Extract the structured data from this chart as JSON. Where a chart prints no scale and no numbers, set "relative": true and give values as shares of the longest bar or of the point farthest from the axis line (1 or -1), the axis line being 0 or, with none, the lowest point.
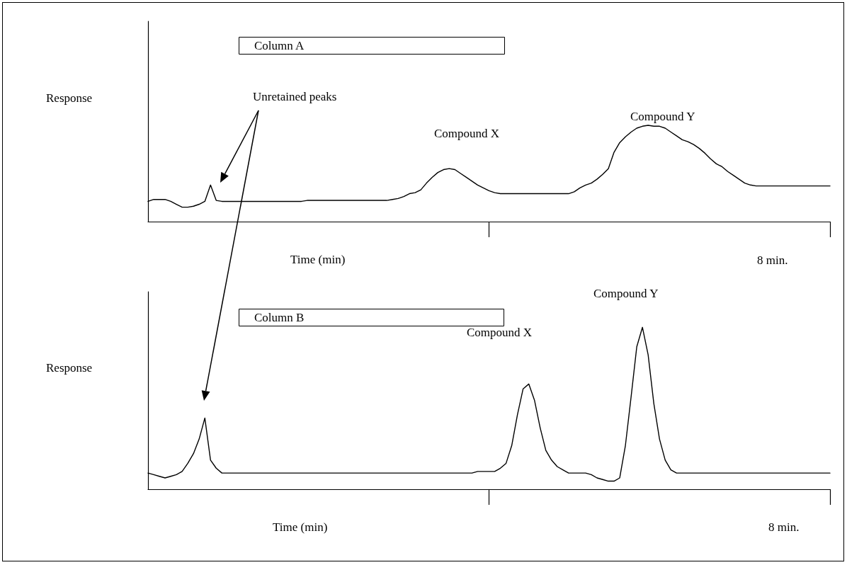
{
  "chart_data": [
    {
      "type": "line",
      "title": "Column A",
      "xlabel": "Time (min)",
      "ylabel": "Response",
      "relative": true,
      "marker": "none",
      "line_style": "solid",
      "color": "#000000",
      "annotations": [
        "Unretained peaks",
        "Compound X",
        "Compound Y",
        "8 min."
      ],
      "categories": [
        null,
        null,
        null,
        null,
        null,
        null,
        null,
        null,
        null,
        null,
        null,
        null,
        null,
        null,
        null,
        null,
        null,
        null,
        null,
        null,
        null,
        null,
        null,
        null,
        null,
        null,
        null,
        null,
        null,
        null,
        null,
        null,
        null,
        null,
        null,
        null,
        null,
        null,
        null,
        null,
        null,
        null,
        null,
        null,
        null,
        null,
        null,
        null,
        null,
        null,
        null,
        null,
        null,
        null,
        null,
        null,
        null,
        null,
        null,
        null,
        null,
        null,
        null,
        null,
        null,
        null,
        null,
        null,
        null,
        null,
        null,
        null,
        null,
        null,
        null,
        null,
        null,
        null,
        null,
        null,
        null,
        null,
        null,
        null,
        null,
        null,
        null,
        null,
        null,
        null,
        null,
        null,
        null,
        null,
        null,
        null,
        null,
        null,
        null,
        null,
        null,
        null,
        null,
        null,
        null,
        null,
        null,
        null,
        null,
        null,
        null,
        null,
        null,
        null,
        null,
        null,
        null,
        null,
        null,
        null,
        null
      ],
      "values": [
        0.21,
        0.23,
        0.23,
        0.23,
        0.21,
        0.18,
        0.15,
        0.15,
        0.16,
        0.18,
        0.21,
        0.38,
        0.22,
        0.21,
        0.21,
        0.21,
        0.21,
        0.21,
        0.21,
        0.21,
        0.21,
        0.21,
        0.21,
        0.21,
        0.21,
        0.21,
        0.21,
        0.21,
        0.22,
        0.22,
        0.22,
        0.22,
        0.22,
        0.22,
        0.22,
        0.22,
        0.22,
        0.22,
        0.22,
        0.22,
        0.22,
        0.22,
        0.22,
        0.23,
        0.24,
        0.26,
        0.29,
        0.3,
        0.33,
        0.4,
        0.46,
        0.51,
        0.54,
        0.55,
        0.54,
        0.5,
        0.46,
        0.42,
        0.38,
        0.35,
        0.32,
        0.3,
        0.29,
        0.29,
        0.29,
        0.29,
        0.29,
        0.29,
        0.29,
        0.29,
        0.29,
        0.29,
        0.29,
        0.29,
        0.29,
        0.31,
        0.35,
        0.38,
        0.4,
        0.44,
        0.49,
        0.55,
        0.72,
        0.82,
        0.88,
        0.93,
        0.97,
        0.99,
        1,
        0.99,
        0.99,
        0.97,
        0.93,
        0.89,
        0.85,
        0.83,
        0.8,
        0.76,
        0.71,
        0.65,
        0.6,
        0.57,
        0.52,
        0.48,
        0.44,
        0.4,
        0.38,
        0.37,
        0.37,
        0.37,
        0.37,
        0.37,
        0.37,
        0.37,
        0.37,
        0.37,
        0.37,
        0.37,
        0.37,
        0.37,
        0.37
      ]
    },
    {
      "type": "line",
      "title": "Column B",
      "xlabel": "Time (min)",
      "ylabel": "Response",
      "relative": true,
      "marker": "none",
      "line_style": "solid",
      "color": "#000000",
      "annotations": [
        "Compound X",
        "Compound Y",
        "8 min."
      ],
      "categories": [
        null,
        null,
        null,
        null,
        null,
        null,
        null,
        null,
        null,
        null,
        null,
        null,
        null,
        null,
        null,
        null,
        null,
        null,
        null,
        null,
        null,
        null,
        null,
        null,
        null,
        null,
        null,
        null,
        null,
        null,
        null,
        null,
        null,
        null,
        null,
        null,
        null,
        null,
        null,
        null,
        null,
        null,
        null,
        null,
        null,
        null,
        null,
        null,
        null,
        null,
        null,
        null,
        null,
        null,
        null,
        null,
        null,
        null,
        null,
        null,
        null,
        null,
        null,
        null,
        null,
        null,
        null,
        null,
        null,
        null,
        null,
        null,
        null,
        null,
        null,
        null,
        null,
        null,
        null,
        null,
        null,
        null,
        null,
        null,
        null,
        null,
        null,
        null,
        null,
        null,
        null,
        null,
        null,
        null,
        null,
        null,
        null,
        null,
        null,
        null,
        null,
        null,
        null,
        null,
        null,
        null,
        null,
        null,
        null,
        null,
        null,
        null,
        null,
        null,
        null,
        null,
        null,
        null,
        null,
        null,
        null
      ],
      "values": [
        0.1,
        0.09,
        0.08,
        0.07,
        0.08,
        0.09,
        0.11,
        0.16,
        0.22,
        0.31,
        0.44,
        0.18,
        0.13,
        0.1,
        0.1,
        0.1,
        0.1,
        0.1,
        0.1,
        0.1,
        0.1,
        0.1,
        0.1,
        0.1,
        0.1,
        0.1,
        0.1,
        0.1,
        0.1,
        0.1,
        0.1,
        0.1,
        0.1,
        0.1,
        0.1,
        0.1,
        0.1,
        0.1,
        0.1,
        0.1,
        0.1,
        0.1,
        0.1,
        0.1,
        0.1,
        0.1,
        0.1,
        0.1,
        0.1,
        0.1,
        0.1,
        0.1,
        0.1,
        0.1,
        0.1,
        0.1,
        0.1,
        0.1,
        0.11,
        0.11,
        0.11,
        0.11,
        0.13,
        0.16,
        0.27,
        0.46,
        0.62,
        0.65,
        0.55,
        0.38,
        0.24,
        0.18,
        0.14,
        0.12,
        0.1,
        0.1,
        0.1,
        0.1,
        0.09,
        0.07,
        0.06,
        0.05,
        0.05,
        0.07,
        0.27,
        0.57,
        0.88,
        1,
        0.83,
        0.53,
        0.31,
        0.18,
        0.12,
        0.1,
        0.1,
        0.1,
        0.1,
        0.1,
        0.1,
        0.1,
        0.1,
        0.1,
        0.1,
        0.1,
        0.1,
        0.1,
        0.1,
        0.1,
        0.1,
        0.1,
        0.1,
        0.1,
        0.1,
        0.1,
        0.1,
        0.1,
        0.1,
        0.1,
        0.1,
        0.1,
        0.1
      ]
    }
  ]
}
